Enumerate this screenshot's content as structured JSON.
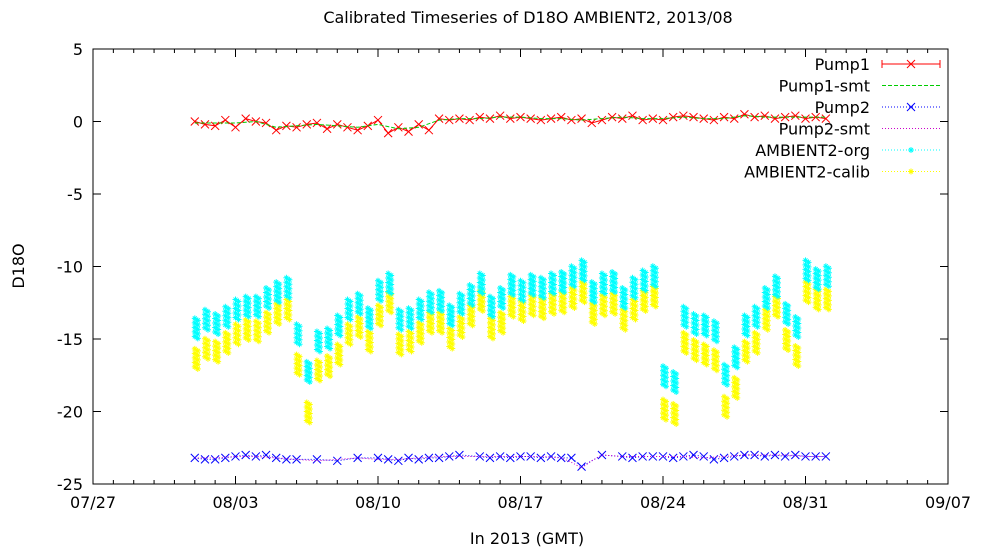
{
  "chart_data": {
    "type": "scatter",
    "title": "Calibrated Timeseries of D18O AMBIENT2, 2013/08",
    "xlabel": "In 2013 (GMT)",
    "ylabel": "D18O",
    "xlim": [
      "2013-07-27",
      "2013-09-07"
    ],
    "ylim": [
      -25,
      5
    ],
    "x_ticks": [
      {
        "date": "2013-07-27",
        "label": "07/27"
      },
      {
        "date": "2013-08-03",
        "label": "08/03"
      },
      {
        "date": "2013-08-10",
        "label": "08/10"
      },
      {
        "date": "2013-08-17",
        "label": "08/17"
      },
      {
        "date": "2013-08-24",
        "label": "08/24"
      },
      {
        "date": "2013-08-31",
        "label": "08/31"
      },
      {
        "date": "2013-09-07",
        "label": "09/07"
      }
    ],
    "y_ticks": [
      5,
      0,
      -5,
      -10,
      -15,
      -20,
      -25
    ],
    "grid": false,
    "legend_position": "top-right",
    "series": [
      {
        "name": "Pump1",
        "color": "#ff0000",
        "marker": "x",
        "line": "solid",
        "x": [
          "2013-08-01",
          "2013-08-01 12:00",
          "2013-08-02",
          "2013-08-02 12:00",
          "2013-08-03",
          "2013-08-03 12:00",
          "2013-08-04",
          "2013-08-04 12:00",
          "2013-08-05",
          "2013-08-05 12:00",
          "2013-08-06",
          "2013-08-06 12:00",
          "2013-08-07",
          "2013-08-07 12:00",
          "2013-08-08",
          "2013-08-08 12:00",
          "2013-08-09",
          "2013-08-09 12:00",
          "2013-08-10",
          "2013-08-10 12:00",
          "2013-08-11",
          "2013-08-11 12:00",
          "2013-08-12",
          "2013-08-12 12:00",
          "2013-08-13",
          "2013-08-13 12:00",
          "2013-08-14",
          "2013-08-14 12:00",
          "2013-08-15",
          "2013-08-15 12:00",
          "2013-08-16",
          "2013-08-16 12:00",
          "2013-08-17",
          "2013-08-17 12:00",
          "2013-08-18",
          "2013-08-18 12:00",
          "2013-08-19",
          "2013-08-19 12:00",
          "2013-08-20",
          "2013-08-20 12:00",
          "2013-08-21",
          "2013-08-21 12:00",
          "2013-08-22",
          "2013-08-22 12:00",
          "2013-08-23",
          "2013-08-23 12:00",
          "2013-08-24",
          "2013-08-24 12:00",
          "2013-08-25",
          "2013-08-25 12:00",
          "2013-08-26",
          "2013-08-26 12:00",
          "2013-08-27",
          "2013-08-27 12:00",
          "2013-08-28",
          "2013-08-28 12:00",
          "2013-08-29",
          "2013-08-29 12:00",
          "2013-08-30",
          "2013-08-30 12:00",
          "2013-08-31",
          "2013-08-31 12:00",
          "2013-09-01"
        ],
        "y": [
          0.0,
          -0.2,
          -0.3,
          0.1,
          -0.4,
          0.2,
          0.0,
          -0.1,
          -0.6,
          -0.3,
          -0.4,
          -0.2,
          -0.1,
          -0.5,
          -0.2,
          -0.4,
          -0.6,
          -0.3,
          0.1,
          -0.8,
          -0.4,
          -0.7,
          -0.2,
          -0.6,
          0.2,
          0.1,
          0.2,
          0.1,
          0.3,
          0.2,
          0.4,
          0.2,
          0.3,
          0.2,
          0.1,
          0.2,
          0.3,
          0.1,
          0.2,
          -0.1,
          0.1,
          0.3,
          0.2,
          0.4,
          0.1,
          0.2,
          0.1,
          0.3,
          0.4,
          0.3,
          0.2,
          0.1,
          0.3,
          0.2,
          0.5,
          0.3,
          0.4,
          0.2,
          0.3,
          0.4,
          0.2,
          0.3,
          0.2
        ]
      },
      {
        "name": "Pump1-smt",
        "color": "#00cc00",
        "marker": "none",
        "line": "dashed",
        "x": [
          "2013-08-01",
          "2013-08-02",
          "2013-08-03",
          "2013-08-04",
          "2013-08-05",
          "2013-08-06",
          "2013-08-07",
          "2013-08-08",
          "2013-08-09",
          "2013-08-10",
          "2013-08-11",
          "2013-08-12",
          "2013-08-13",
          "2013-08-14",
          "2013-08-15",
          "2013-08-16",
          "2013-08-17",
          "2013-08-18",
          "2013-08-19",
          "2013-08-20",
          "2013-08-21",
          "2013-08-22",
          "2013-08-23",
          "2013-08-24",
          "2013-08-25",
          "2013-08-26",
          "2013-08-27",
          "2013-08-28",
          "2013-08-29",
          "2013-08-30",
          "2013-08-31",
          "2013-09-01"
        ],
        "y": [
          -0.1,
          -0.1,
          -0.1,
          0.0,
          -0.4,
          -0.3,
          -0.2,
          -0.3,
          -0.4,
          -0.2,
          -0.5,
          -0.4,
          0.1,
          0.2,
          0.2,
          0.3,
          0.3,
          0.2,
          0.2,
          0.1,
          0.2,
          0.3,
          0.2,
          0.2,
          0.3,
          0.2,
          0.2,
          0.4,
          0.3,
          0.3,
          0.3,
          0.3
        ]
      },
      {
        "name": "Pump2",
        "color": "#0000ff",
        "marker": "x",
        "line": "dotted",
        "x": [
          "2013-08-01",
          "2013-08-01 12:00",
          "2013-08-02",
          "2013-08-02 12:00",
          "2013-08-03",
          "2013-08-03 12:00",
          "2013-08-04",
          "2013-08-04 12:00",
          "2013-08-05",
          "2013-08-05 12:00",
          "2013-08-06",
          "2013-08-07",
          "2013-08-08",
          "2013-08-09",
          "2013-08-10",
          "2013-08-10 12:00",
          "2013-08-11",
          "2013-08-11 12:00",
          "2013-08-12",
          "2013-08-12 12:00",
          "2013-08-13",
          "2013-08-13 12:00",
          "2013-08-14",
          "2013-08-15",
          "2013-08-15 12:00",
          "2013-08-16",
          "2013-08-16 12:00",
          "2013-08-17",
          "2013-08-17 12:00",
          "2013-08-18",
          "2013-08-18 12:00",
          "2013-08-19",
          "2013-08-19 12:00",
          "2013-08-20",
          "2013-08-21",
          "2013-08-22",
          "2013-08-22 12:00",
          "2013-08-23",
          "2013-08-23 12:00",
          "2013-08-24",
          "2013-08-24 12:00",
          "2013-08-25",
          "2013-08-25 12:00",
          "2013-08-26",
          "2013-08-26 12:00",
          "2013-08-27",
          "2013-08-27 12:00",
          "2013-08-28",
          "2013-08-28 12:00",
          "2013-08-29",
          "2013-08-29 12:00",
          "2013-08-30",
          "2013-08-30 12:00",
          "2013-08-31",
          "2013-08-31 12:00",
          "2013-09-01"
        ],
        "y": [
          -23.2,
          -23.3,
          -23.3,
          -23.2,
          -23.1,
          -23.0,
          -23.1,
          -23.0,
          -23.2,
          -23.3,
          -23.3,
          -23.3,
          -23.4,
          -23.2,
          -23.2,
          -23.3,
          -23.4,
          -23.2,
          -23.3,
          -23.2,
          -23.2,
          -23.1,
          -23.0,
          -23.1,
          -23.2,
          -23.1,
          -23.2,
          -23.1,
          -23.1,
          -23.2,
          -23.1,
          -23.2,
          -23.2,
          -23.8,
          -23.0,
          -23.1,
          -23.2,
          -23.1,
          -23.1,
          -23.1,
          -23.2,
          -23.1,
          -23.0,
          -23.1,
          -23.3,
          -23.2,
          -23.1,
          -23.0,
          -23.0,
          -23.1,
          -23.0,
          -23.1,
          -23.0,
          -23.1,
          -23.1,
          -23.1
        ]
      },
      {
        "name": "Pump2-smt",
        "color": "#cc00cc",
        "marker": "none",
        "line": "dotted",
        "x": [
          "2013-08-01",
          "2013-08-02",
          "2013-08-03",
          "2013-08-04",
          "2013-08-05",
          "2013-08-06",
          "2013-08-07",
          "2013-08-08",
          "2013-08-09",
          "2013-08-10",
          "2013-08-11",
          "2013-08-12",
          "2013-08-13",
          "2013-08-14",
          "2013-08-15",
          "2013-08-16",
          "2013-08-17",
          "2013-08-18",
          "2013-08-19",
          "2013-08-19 12:00",
          "2013-08-20",
          "2013-08-20 12:00",
          "2013-08-21",
          "2013-08-22",
          "2013-08-23",
          "2013-08-24",
          "2013-08-25",
          "2013-08-26",
          "2013-08-27",
          "2013-08-28",
          "2013-08-29",
          "2013-08-30",
          "2013-08-31",
          "2013-09-01"
        ],
        "y": [
          -23.2,
          -23.2,
          -23.1,
          -23.1,
          -23.2,
          -23.3,
          -23.4,
          -23.3,
          -23.2,
          -23.3,
          -23.3,
          -23.2,
          -23.1,
          -23.1,
          -23.1,
          -23.1,
          -23.1,
          -23.1,
          -23.2,
          -23.5,
          -23.9,
          -23.4,
          -23.0,
          -23.1,
          -23.1,
          -23.1,
          -23.1,
          -23.2,
          -23.1,
          -23.0,
          -23.0,
          -23.0,
          -23.1,
          -23.1
        ]
      },
      {
        "name": "AMBIENT2-org",
        "color": "#00ffff",
        "marker": "star",
        "line": "dotted",
        "x": [
          "2013-08-01",
          "2013-08-01 12:00",
          "2013-08-02",
          "2013-08-02 12:00",
          "2013-08-03",
          "2013-08-03 12:00",
          "2013-08-04",
          "2013-08-04 12:00",
          "2013-08-05",
          "2013-08-05 12:00",
          "2013-08-06",
          "2013-08-06 12:00",
          "2013-08-07",
          "2013-08-07 12:00",
          "2013-08-08",
          "2013-08-08 12:00",
          "2013-08-09",
          "2013-08-09 12:00",
          "2013-08-10",
          "2013-08-10 12:00",
          "2013-08-11",
          "2013-08-11 12:00",
          "2013-08-12",
          "2013-08-12 12:00",
          "2013-08-13",
          "2013-08-13 12:00",
          "2013-08-14",
          "2013-08-14 12:00",
          "2013-08-15",
          "2013-08-15 12:00",
          "2013-08-16",
          "2013-08-16 12:00",
          "2013-08-17",
          "2013-08-17 12:00",
          "2013-08-18",
          "2013-08-18 12:00",
          "2013-08-19",
          "2013-08-19 12:00",
          "2013-08-20",
          "2013-08-20 12:00",
          "2013-08-21",
          "2013-08-21 12:00",
          "2013-08-22",
          "2013-08-22 12:00",
          "2013-08-23",
          "2013-08-23 12:00",
          "2013-08-24",
          "2013-08-24 12:00",
          "2013-08-25",
          "2013-08-25 12:00",
          "2013-08-26",
          "2013-08-26 12:00",
          "2013-08-27",
          "2013-08-27 12:00",
          "2013-08-28",
          "2013-08-28 12:00",
          "2013-08-29",
          "2013-08-29 12:00",
          "2013-08-30",
          "2013-08-30 12:00",
          "2013-08-31",
          "2013-08-31 12:00",
          "2013-09-01"
        ],
        "y": [
          -14.2,
          -13.6,
          -13.9,
          -13.4,
          -12.9,
          -12.7,
          -12.7,
          -12.1,
          -11.7,
          -11.4,
          -14.6,
          -17.2,
          -15.1,
          -14.9,
          -14.0,
          -12.9,
          -12.5,
          -13.5,
          -11.6,
          -11.1,
          -13.6,
          -13.5,
          -12.9,
          -12.4,
          -12.3,
          -13.3,
          -12.5,
          -11.9,
          -11.1,
          -12.7,
          -12.1,
          -11.2,
          -11.6,
          -11.2,
          -11.4,
          -11.1,
          -11.0,
          -10.6,
          -10.2,
          -11.7,
          -11.1,
          -11.0,
          -12.1,
          -11.4,
          -10.9,
          -10.6,
          -17.5,
          -17.9,
          -13.4,
          -13.9,
          -14.0,
          -14.4,
          -17.4,
          -16.2,
          -14.0,
          -13.4,
          -12.1,
          -11.3,
          -13.2,
          -14.1,
          -10.2,
          -10.8,
          -10.6
        ]
      },
      {
        "name": "AMBIENT2-calib",
        "color": "#ffff00",
        "marker": "star",
        "line": "dotted",
        "x": [
          "2013-08-01",
          "2013-08-01 12:00",
          "2013-08-02",
          "2013-08-02 12:00",
          "2013-08-03",
          "2013-08-03 12:00",
          "2013-08-04",
          "2013-08-04 12:00",
          "2013-08-05",
          "2013-08-05 12:00",
          "2013-08-06",
          "2013-08-06 12:00",
          "2013-08-07",
          "2013-08-07 12:00",
          "2013-08-08",
          "2013-08-08 12:00",
          "2013-08-09",
          "2013-08-09 12:00",
          "2013-08-10",
          "2013-08-10 12:00",
          "2013-08-11",
          "2013-08-11 12:00",
          "2013-08-12",
          "2013-08-12 12:00",
          "2013-08-13",
          "2013-08-13 12:00",
          "2013-08-14",
          "2013-08-14 12:00",
          "2013-08-15",
          "2013-08-15 12:00",
          "2013-08-16",
          "2013-08-16 12:00",
          "2013-08-17",
          "2013-08-17 12:00",
          "2013-08-18",
          "2013-08-18 12:00",
          "2013-08-19",
          "2013-08-19 12:00",
          "2013-08-20",
          "2013-08-20 12:00",
          "2013-08-21",
          "2013-08-21 12:00",
          "2013-08-22",
          "2013-08-22 12:00",
          "2013-08-23",
          "2013-08-23 12:00",
          "2013-08-24",
          "2013-08-24 12:00",
          "2013-08-25",
          "2013-08-25 12:00",
          "2013-08-26",
          "2013-08-26 12:00",
          "2013-08-27",
          "2013-08-27 12:00",
          "2013-08-28",
          "2013-08-28 12:00",
          "2013-08-29",
          "2013-08-29 12:00",
          "2013-08-30",
          "2013-08-30 12:00",
          "2013-08-31",
          "2013-08-31 12:00",
          "2013-09-01"
        ],
        "y": [
          -16.3,
          -15.6,
          -15.8,
          -15.2,
          -14.6,
          -14.3,
          -14.4,
          -13.8,
          -13.2,
          -12.9,
          -16.7,
          -20.0,
          -17.1,
          -16.8,
          -16.0,
          -14.6,
          -14.1,
          -15.1,
          -13.3,
          -12.4,
          -15.3,
          -15.1,
          -14.5,
          -13.8,
          -13.8,
          -14.9,
          -14.1,
          -13.3,
          -12.3,
          -14.2,
          -13.8,
          -12.7,
          -13.0,
          -12.6,
          -12.8,
          -12.5,
          -12.4,
          -12.1,
          -11.7,
          -13.2,
          -12.6,
          -12.5,
          -13.6,
          -12.9,
          -12.3,
          -12.0,
          -19.8,
          -20.1,
          -15.2,
          -15.7,
          -16.0,
          -16.4,
          -19.6,
          -18.3,
          -15.8,
          -15.2,
          -13.6,
          -12.7,
          -15.0,
          -16.1,
          -11.7,
          -12.2,
          -12.2
        ]
      }
    ]
  }
}
